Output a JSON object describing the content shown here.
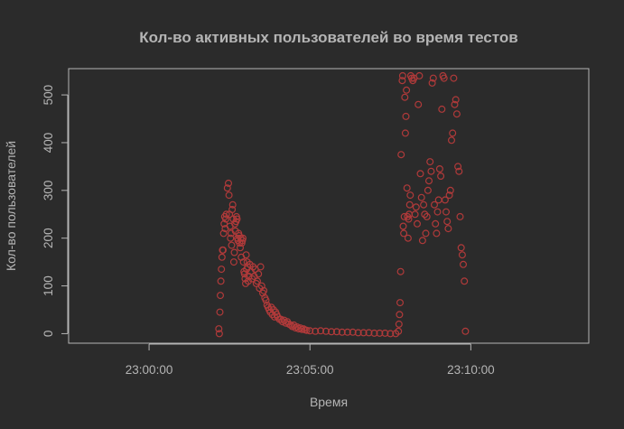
{
  "chart_data": {
    "type": "scatter",
    "title": "Кол-во активных пользователей во время тестов",
    "xlabel": "Время",
    "ylabel": "Кол-во пользователей",
    "x_unit": "time of day",
    "xlim": [
      "22:57:30",
      "23:13:40"
    ],
    "ylim": [
      -20,
      555
    ],
    "x_ticks": [
      "23:00:00",
      "23:05:00",
      "23:10:00"
    ],
    "y_ticks": [
      0,
      100,
      200,
      300,
      400,
      500
    ],
    "marker": "open-circle",
    "point_color": "#b03a3a",
    "grid": false,
    "legend": "none",
    "series": [
      {
        "points": [
          [
            "23:02:10",
            10
          ],
          [
            "23:02:11",
            0
          ],
          [
            "23:02:12",
            45
          ],
          [
            "23:02:13",
            80
          ],
          [
            "23:02:14",
            110
          ],
          [
            "23:02:15",
            135
          ],
          [
            "23:02:16",
            160
          ],
          [
            "23:02:17",
            175
          ],
          [
            "23:02:18",
            175
          ],
          [
            "23:02:19",
            210
          ],
          [
            "23:02:20",
            230
          ],
          [
            "23:02:21",
            245
          ],
          [
            "23:02:22",
            220
          ],
          [
            "23:02:23",
            240
          ],
          [
            "23:02:24",
            250
          ],
          [
            "23:02:26",
            305
          ],
          [
            "23:02:28",
            315
          ],
          [
            "23:02:29",
            290
          ],
          [
            "23:02:30",
            250
          ],
          [
            "23:02:31",
            225
          ],
          [
            "23:02:32",
            200
          ],
          [
            "23:02:33",
            210
          ],
          [
            "23:02:34",
            185
          ],
          [
            "23:02:35",
            260
          ],
          [
            "23:02:36",
            270
          ],
          [
            "23:02:37",
            240
          ],
          [
            "23:02:38",
            150
          ],
          [
            "23:02:39",
            170
          ],
          [
            "23:02:40",
            230
          ],
          [
            "23:02:41",
            215
          ],
          [
            "23:02:42",
            235
          ],
          [
            "23:02:43",
            245
          ],
          [
            "23:02:44",
            240
          ],
          [
            "23:02:45",
            200
          ],
          [
            "23:02:46",
            195
          ],
          [
            "23:02:47",
            210
          ],
          [
            "23:02:48",
            205
          ],
          [
            "23:02:49",
            190
          ],
          [
            "23:02:50",
            180
          ],
          [
            "23:02:51",
            200
          ],
          [
            "23:02:52",
            160
          ],
          [
            "23:02:53",
            190
          ],
          [
            "23:02:54",
            195
          ],
          [
            "23:02:55",
            200
          ],
          [
            "23:02:56",
            150
          ],
          [
            "23:02:57",
            130
          ],
          [
            "23:02:58",
            125
          ],
          [
            "23:02:59",
            115
          ],
          [
            "23:03:00",
            105
          ],
          [
            "23:03:01",
            165
          ],
          [
            "23:03:02",
            135
          ],
          [
            "23:03:03",
            150
          ],
          [
            "23:03:04",
            140
          ],
          [
            "23:03:05",
            110
          ],
          [
            "23:03:06",
            120
          ],
          [
            "23:03:08",
            145
          ],
          [
            "23:03:10",
            130
          ],
          [
            "23:03:12",
            115
          ],
          [
            "23:03:14",
            140
          ],
          [
            "23:03:16",
            120
          ],
          [
            "23:03:18",
            135
          ],
          [
            "23:03:20",
            105
          ],
          [
            "23:03:22",
            110
          ],
          [
            "23:03:24",
            125
          ],
          [
            "23:03:26",
            95
          ],
          [
            "23:03:28",
            140
          ],
          [
            "23:03:30",
            100
          ],
          [
            "23:03:32",
            85
          ],
          [
            "23:03:34",
            90
          ],
          [
            "23:03:36",
            75
          ],
          [
            "23:03:38",
            70
          ],
          [
            "23:03:40",
            60
          ],
          [
            "23:03:42",
            55
          ],
          [
            "23:03:44",
            50
          ],
          [
            "23:03:46",
            45
          ],
          [
            "23:03:48",
            55
          ],
          [
            "23:03:50",
            40
          ],
          [
            "23:03:52",
            50
          ],
          [
            "23:03:54",
            35
          ],
          [
            "23:03:56",
            45
          ],
          [
            "23:03:58",
            40
          ],
          [
            "23:04:00",
            35
          ],
          [
            "23:04:03",
            30
          ],
          [
            "23:04:06",
            30
          ],
          [
            "23:04:09",
            25
          ],
          [
            "23:04:12",
            28
          ],
          [
            "23:04:15",
            22
          ],
          [
            "23:04:18",
            25
          ],
          [
            "23:04:21",
            20
          ],
          [
            "23:04:24",
            18
          ],
          [
            "23:04:27",
            15
          ],
          [
            "23:04:30",
            18
          ],
          [
            "23:04:33",
            12
          ],
          [
            "23:04:36",
            14
          ],
          [
            "23:04:39",
            10
          ],
          [
            "23:04:42",
            12
          ],
          [
            "23:04:45",
            9
          ],
          [
            "23:04:48",
            10
          ],
          [
            "23:04:51",
            8
          ],
          [
            "23:04:54",
            7
          ],
          [
            "23:05:00",
            6
          ],
          [
            "23:05:10",
            5
          ],
          [
            "23:05:20",
            6
          ],
          [
            "23:05:30",
            5
          ],
          [
            "23:05:40",
            4
          ],
          [
            "23:05:50",
            4
          ],
          [
            "23:06:00",
            3
          ],
          [
            "23:06:10",
            3
          ],
          [
            "23:06:20",
            3
          ],
          [
            "23:06:30",
            2
          ],
          [
            "23:06:40",
            2
          ],
          [
            "23:06:50",
            2
          ],
          [
            "23:07:00",
            1
          ],
          [
            "23:07:10",
            1
          ],
          [
            "23:07:20",
            1
          ],
          [
            "23:07:30",
            0
          ],
          [
            "23:07:40",
            0
          ],
          [
            "23:07:45",
            5
          ],
          [
            "23:07:46",
            20
          ],
          [
            "23:07:47",
            40
          ],
          [
            "23:07:48",
            65
          ],
          [
            "23:07:49",
            130
          ],
          [
            "23:07:50",
            375
          ],
          [
            "23:07:52",
            530
          ],
          [
            "23:07:53",
            540
          ],
          [
            "23:07:54",
            225
          ],
          [
            "23:07:55",
            210
          ],
          [
            "23:07:56",
            245
          ],
          [
            "23:07:57",
            495
          ],
          [
            "23:07:58",
            420
          ],
          [
            "23:07:59",
            455
          ],
          [
            "23:08:00",
            510
          ],
          [
            "23:08:01",
            305
          ],
          [
            "23:08:02",
            245
          ],
          [
            "23:08:03",
            200
          ],
          [
            "23:08:04",
            240
          ],
          [
            "23:08:05",
            250
          ],
          [
            "23:08:06",
            270
          ],
          [
            "23:08:07",
            290
          ],
          [
            "23:08:08",
            540
          ],
          [
            "23:08:10",
            535
          ],
          [
            "23:08:12",
            530
          ],
          [
            "23:08:14",
            535
          ],
          [
            "23:08:16",
            250
          ],
          [
            "23:08:18",
            265
          ],
          [
            "23:08:20",
            230
          ],
          [
            "23:08:22",
            480
          ],
          [
            "23:08:24",
            540
          ],
          [
            "23:08:26",
            335
          ],
          [
            "23:08:28",
            285
          ],
          [
            "23:08:30",
            195
          ],
          [
            "23:08:32",
            270
          ],
          [
            "23:08:34",
            250
          ],
          [
            "23:08:36",
            210
          ],
          [
            "23:08:38",
            245
          ],
          [
            "23:08:40",
            300
          ],
          [
            "23:08:42",
            320
          ],
          [
            "23:08:44",
            360
          ],
          [
            "23:08:46",
            340
          ],
          [
            "23:08:48",
            525
          ],
          [
            "23:08:50",
            535
          ],
          [
            "23:08:52",
            270
          ],
          [
            "23:08:54",
            230
          ],
          [
            "23:08:56",
            210
          ],
          [
            "23:08:58",
            255
          ],
          [
            "23:09:00",
            280
          ],
          [
            "23:09:02",
            345
          ],
          [
            "23:09:04",
            330
          ],
          [
            "23:09:06",
            470
          ],
          [
            "23:09:08",
            540
          ],
          [
            "23:09:10",
            535
          ],
          [
            "23:09:12",
            280
          ],
          [
            "23:09:14",
            255
          ],
          [
            "23:09:16",
            235
          ],
          [
            "23:09:18",
            220
          ],
          [
            "23:09:20",
            290
          ],
          [
            "23:09:22",
            300
          ],
          [
            "23:09:24",
            405
          ],
          [
            "23:09:26",
            420
          ],
          [
            "23:09:28",
            535
          ],
          [
            "23:09:30",
            480
          ],
          [
            "23:09:32",
            490
          ],
          [
            "23:09:34",
            460
          ],
          [
            "23:09:36",
            350
          ],
          [
            "23:09:38",
            340
          ],
          [
            "23:09:40",
            245
          ],
          [
            "23:09:42",
            180
          ],
          [
            "23:09:44",
            165
          ],
          [
            "23:09:46",
            145
          ],
          [
            "23:09:48",
            110
          ],
          [
            "23:09:50",
            5
          ]
        ]
      }
    ]
  }
}
